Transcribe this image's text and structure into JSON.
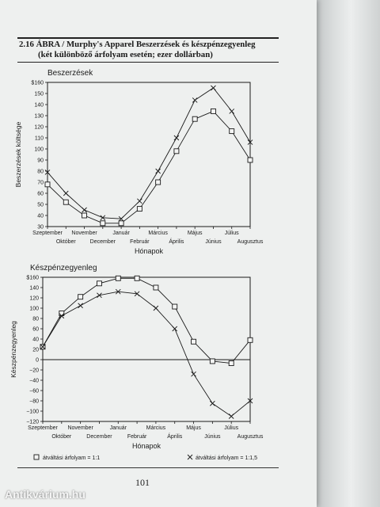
{
  "header": {
    "line1": "2.16 ÁBRA / Murphy's Apparel Beszerzések és készpénzegyenleg",
    "line2": "(két különböző árfolyam esetén; ezer dollárban)"
  },
  "page_number": "101",
  "watermark": "Antikvárium.hu",
  "chart_data": [
    {
      "type": "line",
      "title": "Beszerzések",
      "xlabel": "Hónapok",
      "ylabel": "Beszerzések költsége",
      "categories": [
        "Szeptember",
        "Október",
        "November",
        "December",
        "Január",
        "Február",
        "Március",
        "Április",
        "Május",
        "Június",
        "Július",
        "Augusztus"
      ],
      "yticks": [
        "$160",
        "150",
        "140",
        "130",
        "120",
        "110",
        "100",
        "90",
        "80",
        "70",
        "60",
        "50",
        "40",
        "30"
      ],
      "ylim": [
        30,
        160
      ],
      "series": [
        {
          "name": "",
          "marker": "square",
          "values": [
            68,
            52,
            40,
            33,
            33,
            46,
            70,
            98,
            127,
            134,
            116,
            90
          ]
        },
        {
          "name": "",
          "marker": "x",
          "values": [
            79,
            60,
            45,
            38,
            37,
            53,
            80,
            110,
            144,
            155,
            134,
            106
          ]
        }
      ]
    },
    {
      "type": "line",
      "title": "Készpénzegyenleg",
      "xlabel": "Hónapok",
      "ylabel": "Készpénzegyenleg",
      "categories": [
        "Szeptember",
        "Október",
        "November",
        "December",
        "Január",
        "Február",
        "Március",
        "Április",
        "Május",
        "Június",
        "Július",
        "Augusztus"
      ],
      "yticks": [
        "$160",
        "140",
        "120",
        "100",
        "80",
        "60",
        "40",
        "20",
        "0",
        "−20",
        "−40",
        "−60",
        "−80",
        "−100",
        "−120"
      ],
      "ylim": [
        -120,
        160
      ],
      "series": [
        {
          "name": "átváltási árfolyam = 1:1",
          "marker": "square",
          "values": [
            25,
            90,
            122,
            148,
            158,
            158,
            140,
            103,
            35,
            -3,
            -7,
            38
          ]
        },
        {
          "name": "átváltási árfolyam = 1:1,5",
          "marker": "x",
          "values": [
            25,
            85,
            105,
            125,
            132,
            128,
            100,
            60,
            -28,
            -85,
            -110,
            -80
          ]
        }
      ]
    }
  ]
}
